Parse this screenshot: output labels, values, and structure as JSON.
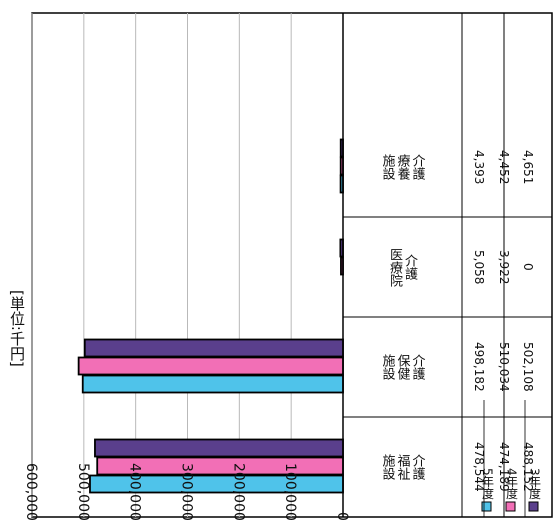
{
  "unit_label": "[単位:千円]",
  "chart_data": {
    "type": "bar",
    "orientation": "horizontal",
    "rotated": 90,
    "unit": "[単位:千円]",
    "categories": [
      "介護福祉施設",
      "介護保健施設",
      "介護医療院",
      "介護療養施設"
    ],
    "category_lines": [
      [
        "介護",
        "福祉",
        "施設"
      ],
      [
        "介護",
        "保健",
        "施設"
      ],
      [
        "介護",
        "医療院"
      ],
      [
        "介護",
        "療養",
        "施設"
      ]
    ],
    "series": [
      {
        "name": "3年度",
        "values": [
          478544,
          498182,
          5058,
          4393
        ],
        "labels": [
          "478,544",
          "498,182",
          "5,058",
          "4,393"
        ],
        "color": "#5a3f8c"
      },
      {
        "name": "4年度",
        "values": [
          474189,
          510034,
          3922,
          4452
        ],
        "labels": [
          "474,189",
          "510,034",
          "3,922",
          "4,452"
        ],
        "color": "#f26fb6"
      },
      {
        "name": "5年度",
        "values": [
          488152,
          502108,
          0,
          4651
        ],
        "labels": [
          "488,152",
          "502,108",
          "0",
          "4,651"
        ],
        "color": "#4fc3ea"
      }
    ],
    "value_axis": {
      "min": 0,
      "max": 600000,
      "step": 100000,
      "ticks": [
        "0",
        "100,000",
        "200,000",
        "300,000",
        "400,000",
        "500,000",
        "600,000"
      ]
    },
    "grid": true,
    "legend": "data-table"
  }
}
